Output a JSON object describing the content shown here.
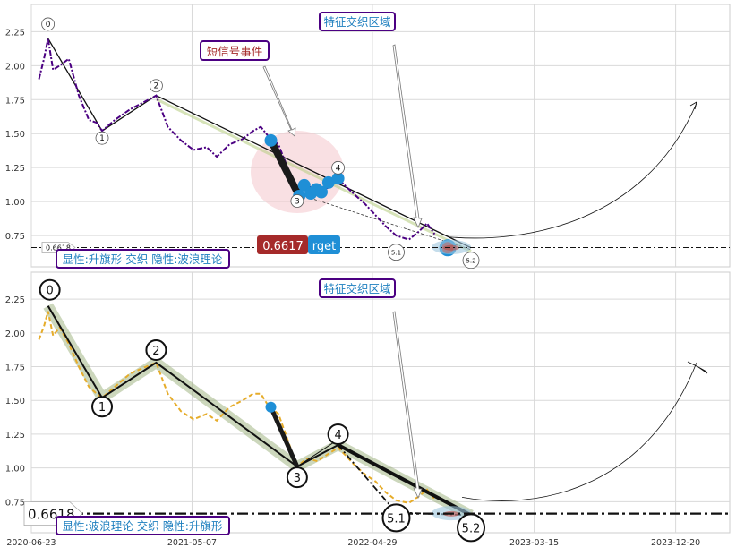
{
  "chart_data": [
    {
      "type": "line",
      "panel": "top",
      "title": "",
      "xlabel": "",
      "ylabel": "",
      "ylim": [
        0.52,
        2.45
      ],
      "yticks": [
        "0.75",
        "1.00",
        "1.25",
        "1.50",
        "1.75",
        "2.00",
        "2.25"
      ],
      "grid": true,
      "series": [
        {
          "name": "",
          "color": "#4b0082",
          "style": "dash-dot",
          "points": [
            [
              "2020-07-08",
              1.9
            ],
            [
              "2020-07-18",
              2.05
            ],
            [
              "2020-07-26",
              2.2
            ],
            [
              "2020-08-05",
              1.97
            ],
            [
              "2020-08-18",
              2.0
            ],
            [
              "2020-09-05",
              2.05
            ],
            [
              "2020-09-25",
              1.78
            ],
            [
              "2020-10-15",
              1.6
            ],
            [
              "2020-10-30",
              1.58
            ],
            [
              "2020-11-10",
              1.52
            ],
            [
              "2020-12-05",
              1.6
            ],
            [
              "2021-01-05",
              1.68
            ],
            [
              "2021-02-05",
              1.74
            ],
            [
              "2021-02-25",
              1.78
            ],
            [
              "2021-03-20",
              1.55
            ],
            [
              "2021-04-15",
              1.45
            ],
            [
              "2021-05-10",
              1.38
            ],
            [
              "2021-06-05",
              1.4
            ],
            [
              "2021-06-25",
              1.33
            ],
            [
              "2021-07-20",
              1.42
            ],
            [
              "2021-08-15",
              1.46
            ],
            [
              "2021-09-05",
              1.52
            ],
            [
              "2021-09-20",
              1.55
            ],
            [
              "2021-10-05",
              1.48
            ],
            [
              "2021-10-25",
              1.42
            ],
            [
              "2021-12-01",
              1.07
            ],
            [
              "2021-12-20",
              1.12
            ],
            [
              "2022-01-10",
              1.08
            ],
            [
              "2022-01-30",
              1.1
            ],
            [
              "2022-02-20",
              1.17
            ],
            [
              "2022-03-05",
              1.12
            ],
            [
              "2022-03-25",
              1.05
            ],
            [
              "2022-04-15",
              0.98
            ],
            [
              "2022-05-05",
              0.9
            ],
            [
              "2022-05-25",
              0.82
            ],
            [
              "2022-06-15",
              0.75
            ],
            [
              "2022-07-10",
              0.72
            ],
            [
              "2022-07-30",
              0.78
            ],
            [
              "2022-08-15",
              0.84
            ],
            [
              "2022-08-30",
              0.76
            ]
          ]
        }
      ],
      "waves": [
        {
          "label": "0",
          "date": "2020-07-26",
          "value": 2.2
        },
        {
          "label": "1",
          "date": "2020-11-10",
          "value": 1.52
        },
        {
          "label": "2",
          "date": "2021-02-25",
          "value": 1.78
        },
        {
          "label": "3",
          "date": "2021-12-01",
          "value": 1.07
        },
        {
          "label": "4",
          "date": "2022-02-20",
          "value": 1.17
        },
        {
          "label": "5.1",
          "date": "2022-06-15",
          "value": 0.68
        },
        {
          "label": "5.2",
          "date": "2022-11-10",
          "value": 0.66
        }
      ],
      "short_signal": [
        [
          "2021-10-10",
          1.45
        ],
        [
          "2021-12-01",
          1.07
        ]
      ],
      "signal_points": [
        [
          "2021-10-10",
          1.45
        ],
        [
          "2021-12-05",
          1.04
        ],
        [
          "2021-12-15",
          1.12
        ],
        [
          "2021-12-28",
          1.06
        ],
        [
          "2022-01-08",
          1.09
        ],
        [
          "2022-01-18",
          1.07
        ],
        [
          "2022-02-01",
          1.14
        ],
        [
          "2022-02-20",
          1.17
        ],
        [
          "2022-09-25",
          0.66
        ]
      ],
      "hline": {
        "value": 0.6618,
        "label": "0.6618"
      },
      "target": {
        "value_label": "0.6617",
        "text_label": "rget"
      },
      "annotations": {
        "feature_zone": "特征交织区域",
        "short_signal": "短信号事件",
        "pattern": "显性:升旗形 交织 隐性:波浪理论"
      }
    },
    {
      "type": "line",
      "panel": "bottom",
      "title": "",
      "xlabel": "",
      "ylabel": "",
      "ylim": [
        0.52,
        2.45
      ],
      "yticks": [
        "0.75",
        "1.00",
        "1.25",
        "1.50",
        "1.75",
        "2.00",
        "2.25"
      ],
      "xticks": [
        "2020-06-23",
        "2021-05-07",
        "2022-04-29",
        "2023-03-15",
        "2023-12-20"
      ],
      "grid": true,
      "series": [
        {
          "name": "",
          "color": "#e6ac2a",
          "style": "dashed",
          "points": [
            [
              "2020-07-08",
              1.95
            ],
            [
              "2020-07-18",
              2.05
            ],
            [
              "2020-07-26",
              2.16
            ],
            [
              "2020-08-05",
              1.98
            ],
            [
              "2020-08-18",
              2.04
            ],
            [
              "2020-09-05",
              1.92
            ],
            [
              "2020-09-25",
              1.75
            ],
            [
              "2020-10-15",
              1.6
            ],
            [
              "2020-10-30",
              1.55
            ],
            [
              "2020-11-10",
              1.52
            ],
            [
              "2020-12-05",
              1.6
            ],
            [
              "2021-01-05",
              1.7
            ],
            [
              "2021-02-05",
              1.75
            ],
            [
              "2021-02-25",
              1.78
            ],
            [
              "2021-03-20",
              1.55
            ],
            [
              "2021-04-15",
              1.42
            ],
            [
              "2021-05-10",
              1.36
            ],
            [
              "2021-06-05",
              1.4
            ],
            [
              "2021-06-25",
              1.35
            ],
            [
              "2021-07-20",
              1.45
            ],
            [
              "2021-08-15",
              1.5
            ],
            [
              "2021-09-05",
              1.55
            ],
            [
              "2021-09-20",
              1.55
            ],
            [
              "2021-10-05",
              1.46
            ],
            [
              "2021-10-25",
              1.4
            ],
            [
              "2021-12-01",
              1.01
            ],
            [
              "2021-12-20",
              1.07
            ],
            [
              "2022-01-10",
              1.05
            ],
            [
              "2022-01-30",
              1.1
            ],
            [
              "2022-02-20",
              1.15
            ],
            [
              "2022-03-05",
              1.1
            ],
            [
              "2022-03-25",
              1.02
            ],
            [
              "2022-04-15",
              0.95
            ],
            [
              "2022-05-05",
              0.9
            ],
            [
              "2022-05-25",
              0.82
            ],
            [
              "2022-06-15",
              0.76
            ],
            [
              "2022-07-10",
              0.74
            ],
            [
              "2022-07-30",
              0.79
            ],
            [
              "2022-08-15",
              0.84
            ],
            [
              "2022-08-30",
              0.77
            ]
          ]
        }
      ],
      "waves": [
        {
          "label": "0",
          "date": "2020-07-26",
          "value": 2.2
        },
        {
          "label": "1",
          "date": "2020-11-10",
          "value": 1.52
        },
        {
          "label": "2",
          "date": "2021-02-25",
          "value": 1.78
        },
        {
          "label": "3",
          "date": "2021-12-01",
          "value": 1.01
        },
        {
          "label": "4",
          "date": "2022-02-20",
          "value": 1.17
        },
        {
          "label": "5.1",
          "date": "2022-06-15",
          "value": 0.67
        },
        {
          "label": "5.2",
          "date": "2022-11-10",
          "value": 0.65
        }
      ],
      "short_signal": [
        [
          "2021-10-10",
          1.45
        ],
        [
          "2021-12-01",
          1.01
        ]
      ],
      "hline": {
        "value": 0.6618,
        "label": "0.6618"
      },
      "annotations": {
        "feature_zone": "特征交织区域",
        "pattern": "显性:波浪理论 交织 隐性:升旗形"
      }
    }
  ],
  "colors": {
    "top_series": "#4b0082",
    "bottom_series": "#e6ac2a",
    "signal_blue": "#1f8fd6",
    "target_red": "#a52a2a",
    "annotation_border": "#4b0082",
    "annotation_text": "#1e7fbf",
    "short_signal_text": "#a52a2a",
    "wave_band": "#8fa66b"
  }
}
